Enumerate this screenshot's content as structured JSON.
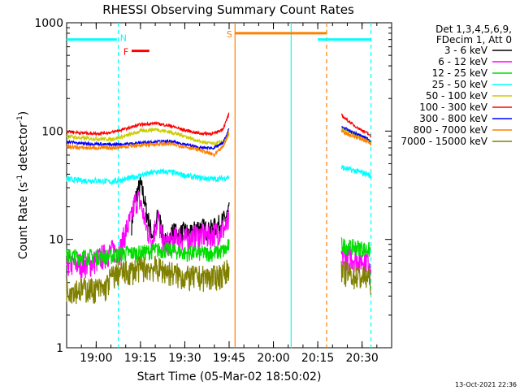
{
  "chart_data": {
    "type": "line",
    "title": "RHESSI Observing Summary Count Rates",
    "xlabel": "Start Time (05-Mar-02 18:50:02)",
    "ylabel_main": "Count Rate (s",
    "ylabel_sup1": "-1",
    "ylabel_mid": " detector",
    "ylabel_sup2": "-1",
    "ylabel_end": ")",
    "y_scale": "log",
    "ylim": [
      1,
      1000
    ],
    "xlim_minutes": [
      -10,
      100
    ],
    "x_ticks": [
      {
        "label": "19:00",
        "minutes": 0
      },
      {
        "label": "19:15",
        "minutes": 15
      },
      {
        "label": "19:30",
        "minutes": 30
      },
      {
        "label": "19:45",
        "minutes": 45
      },
      {
        "label": "20:00",
        "minutes": 60
      },
      {
        "label": "20:15",
        "minutes": 75
      },
      {
        "label": "20:30",
        "minutes": 90
      }
    ],
    "y_ticks": [
      {
        "label": "1",
        "value": 1
      },
      {
        "label": "10",
        "value": 10
      },
      {
        "label": "100",
        "value": 100
      },
      {
        "label": "1000",
        "value": 1000
      }
    ],
    "legend_header": [
      "Det 1,3,4,5,6,9,",
      "FDecim 1, Att 0"
    ],
    "legend_position": "right",
    "timestamp": "13-Oct-2021 22:36",
    "series": [
      {
        "name": "3 - 6 keV",
        "color": "#000000",
        "points": [
          [
            12,
            14
          ],
          [
            13,
            22
          ],
          [
            14,
            28
          ],
          [
            15,
            32
          ],
          [
            16,
            26
          ],
          [
            17,
            18
          ],
          [
            18,
            14
          ],
          [
            19,
            11
          ],
          [
            20,
            12
          ],
          [
            21,
            18
          ],
          [
            22,
            13
          ],
          [
            23,
            10
          ],
          [
            24,
            9
          ],
          [
            26,
            12
          ],
          [
            28,
            11
          ],
          [
            30,
            12
          ],
          [
            32,
            11
          ],
          [
            34,
            13
          ],
          [
            36,
            13
          ],
          [
            38,
            12
          ],
          [
            40,
            13
          ],
          [
            42,
            14
          ],
          [
            44,
            16
          ],
          [
            45,
            18
          ]
        ]
      },
      {
        "name": "6 - 12 keV",
        "color": "#ff00ff",
        "points": [
          [
            -10,
            6
          ],
          [
            -6,
            6
          ],
          [
            -2,
            6
          ],
          [
            2,
            7
          ],
          [
            6,
            8
          ],
          [
            8,
            8
          ],
          [
            10,
            12
          ],
          [
            12,
            16
          ],
          [
            13,
            22
          ],
          [
            14,
            24
          ],
          [
            15,
            22
          ],
          [
            16,
            17
          ],
          [
            17,
            13
          ],
          [
            18,
            11
          ],
          [
            19,
            10
          ],
          [
            20,
            13
          ],
          [
            21,
            16
          ],
          [
            22,
            11
          ],
          [
            23,
            9
          ],
          [
            26,
            10
          ],
          [
            28,
            11
          ],
          [
            30,
            10
          ],
          [
            34,
            11
          ],
          [
            38,
            11
          ],
          [
            42,
            12
          ],
          [
            44,
            13
          ],
          [
            45,
            15
          ]
        ]
      },
      {
        "name": "12 - 25 keV",
        "color": "#00dd00",
        "points": [
          [
            -10,
            7
          ],
          [
            -5,
            7
          ],
          [
            0,
            7
          ],
          [
            5,
            7
          ],
          [
            10,
            7.5
          ],
          [
            15,
            7.5
          ],
          [
            20,
            8
          ],
          [
            25,
            8
          ],
          [
            30,
            7.5
          ],
          [
            35,
            7.5
          ],
          [
            40,
            7.5
          ],
          [
            44,
            8
          ],
          [
            45,
            9
          ]
        ]
      },
      {
        "name": "25 - 50 keV",
        "color": "#00ffff",
        "points": [
          [
            -10,
            36
          ],
          [
            -5,
            35
          ],
          [
            0,
            35
          ],
          [
            5,
            34
          ],
          [
            10,
            36
          ],
          [
            15,
            39
          ],
          [
            20,
            42
          ],
          [
            25,
            42
          ],
          [
            30,
            39
          ],
          [
            35,
            37
          ],
          [
            40,
            36
          ],
          [
            44,
            37
          ],
          [
            45,
            38
          ]
        ]
      },
      {
        "name": "50 - 100 keV",
        "color": "#cccc00",
        "points": [
          [
            -10,
            90
          ],
          [
            -5,
            86
          ],
          [
            0,
            85
          ],
          [
            5,
            84
          ],
          [
            10,
            90
          ],
          [
            15,
            100
          ],
          [
            20,
            104
          ],
          [
            25,
            98
          ],
          [
            30,
            90
          ],
          [
            35,
            80
          ],
          [
            40,
            76
          ],
          [
            44,
            82
          ],
          [
            45,
            92
          ]
        ]
      },
      {
        "name": "100 - 300 keV",
        "color": "#ff0000",
        "points": [
          [
            -10,
            100
          ],
          [
            -5,
            96
          ],
          [
            0,
            95
          ],
          [
            5,
            97
          ],
          [
            10,
            105
          ],
          [
            15,
            115
          ],
          [
            20,
            118
          ],
          [
            25,
            112
          ],
          [
            30,
            102
          ],
          [
            35,
            95
          ],
          [
            40,
            95
          ],
          [
            43,
            105
          ],
          [
            45,
            145
          ]
        ]
      },
      {
        "name": "300 - 800 keV",
        "color": "#0000ff",
        "points": [
          [
            -10,
            80
          ],
          [
            -5,
            77
          ],
          [
            0,
            76
          ],
          [
            5,
            75
          ],
          [
            10,
            76
          ],
          [
            15,
            78
          ],
          [
            20,
            80
          ],
          [
            25,
            80
          ],
          [
            30,
            76
          ],
          [
            35,
            70
          ],
          [
            40,
            70
          ],
          [
            43,
            78
          ],
          [
            45,
            105
          ]
        ]
      },
      {
        "name": "800 - 7000 keV",
        "color": "#ff8000",
        "points": [
          [
            -10,
            72
          ],
          [
            -5,
            70
          ],
          [
            0,
            70
          ],
          [
            5,
            70
          ],
          [
            10,
            72
          ],
          [
            15,
            74
          ],
          [
            20,
            76
          ],
          [
            25,
            76
          ],
          [
            30,
            72
          ],
          [
            35,
            67
          ],
          [
            40,
            60
          ],
          [
            43,
            72
          ],
          [
            45,
            98
          ]
        ]
      },
      {
        "name": "7000 - 15000 keV",
        "color": "#808000",
        "points": [
          [
            -10,
            3.5
          ],
          [
            -5,
            3.5
          ],
          [
            0,
            3.5
          ],
          [
            3,
            3.5
          ],
          [
            5,
            4.5
          ],
          [
            8,
            5
          ],
          [
            11,
            5
          ],
          [
            15,
            5.5
          ],
          [
            20,
            5.5
          ],
          [
            25,
            5
          ],
          [
            30,
            4.5
          ],
          [
            35,
            4.5
          ],
          [
            40,
            4.5
          ],
          [
            44,
            5
          ],
          [
            45,
            6
          ]
        ]
      }
    ],
    "series_after_gap": {
      "100 - 300 keV": [
        [
          83,
          140
        ],
        [
          86,
          120
        ],
        [
          89,
          105
        ],
        [
          92,
          95
        ],
        [
          93,
          88
        ]
      ],
      "300 - 800 keV": [
        [
          83,
          110
        ],
        [
          86,
          100
        ],
        [
          89,
          92
        ],
        [
          92,
          85
        ],
        [
          93,
          80
        ]
      ],
      "800 - 7000 keV": [
        [
          83,
          100
        ],
        [
          86,
          92
        ],
        [
          89,
          86
        ],
        [
          92,
          80
        ],
        [
          93,
          76
        ]
      ],
      "50 - 100 keV": [
        [
          83,
          105
        ],
        [
          86,
          96
        ],
        [
          89,
          90
        ],
        [
          92,
          84
        ],
        [
          93,
          78
        ]
      ],
      "25 - 50 keV": [
        [
          83,
          46
        ],
        [
          86,
          44
        ],
        [
          89,
          42
        ],
        [
          92,
          40
        ],
        [
          93,
          38
        ]
      ],
      "12 - 25 keV": [
        [
          83,
          9
        ],
        [
          86,
          8.5
        ],
        [
          89,
          8.5
        ],
        [
          92,
          8
        ],
        [
          93,
          8
        ]
      ],
      "6 - 12 keV": [
        [
          83,
          7
        ],
        [
          86,
          7
        ],
        [
          89,
          6.5
        ],
        [
          92,
          6.5
        ],
        [
          93,
          6.5
        ]
      ],
      "7000 - 15000 keV": [
        [
          83,
          5
        ],
        [
          86,
          4.8
        ],
        [
          89,
          4.5
        ],
        [
          92,
          4.5
        ],
        [
          93,
          4.2
        ]
      ]
    },
    "event_bars": [
      {
        "label": "N",
        "color": "#00ffff",
        "y_value": 700,
        "segments": [
          [
            -10,
            7
          ],
          [
            75,
            93
          ]
        ]
      },
      {
        "label": "F",
        "color": "#ff0000",
        "y_value": 550,
        "segments": [
          [
            12,
            18
          ]
        ]
      },
      {
        "label": "S",
        "color": "#ff8000",
        "y_value": 800,
        "segments": [
          [
            47,
            78
          ]
        ]
      }
    ],
    "vertical_lines": [
      {
        "minutes": 7.5,
        "color": "#00ffff",
        "style": "dashed"
      },
      {
        "minutes": 47,
        "color": "#ff8000",
        "style": "solid"
      },
      {
        "minutes": 66,
        "color": "#00ffff",
        "style": "solid"
      },
      {
        "minutes": 78,
        "color": "#ff8000",
        "style": "dashed"
      },
      {
        "minutes": 93,
        "color": "#00ffff",
        "style": "dashed"
      }
    ]
  }
}
